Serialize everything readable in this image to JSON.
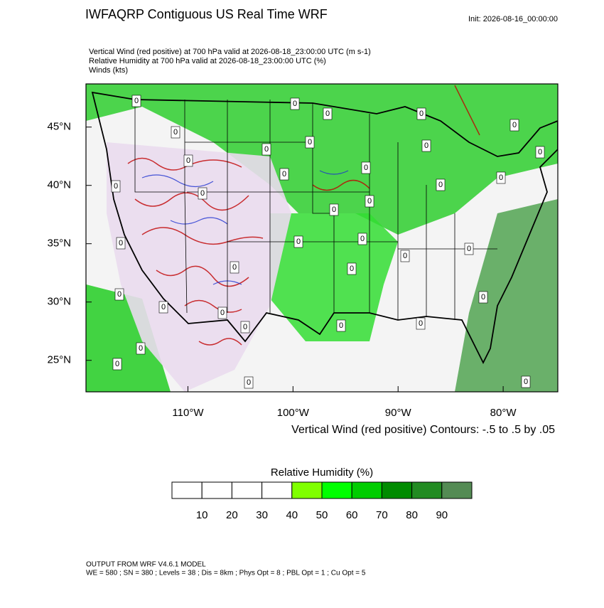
{
  "header": {
    "title": "IWFAQRP Contiguous US Real Time WRF",
    "init": "Init: 2026-08-16_00:00:00"
  },
  "fields": [
    "Vertical Wind (red positive) at 700 hPa valid at 2026-08-18_23:00:00 UTC   (m s-1)",
    "Relative Humidity at 700 hPa valid at 2026-08-18_23:00:00 UTC   (%)",
    "Winds   (kts)"
  ],
  "map": {
    "lonlim": [
      -119.7,
      -74.8
    ],
    "latlim": [
      22.3,
      48.7
    ],
    "lon_ticks": [
      {
        "value": -110,
        "label": "110°W"
      },
      {
        "value": -100,
        "label": "100°W"
      },
      {
        "value": -90,
        "label": "90°W"
      },
      {
        "value": -80,
        "label": "80°W"
      }
    ],
    "lat_ticks": [
      {
        "value": 45,
        "label": "45°N"
      },
      {
        "value": 40,
        "label": "40°N"
      },
      {
        "value": 35,
        "label": "35°N"
      },
      {
        "value": 30,
        "label": "30°N"
      },
      {
        "value": 25,
        "label": "25°N"
      }
    ],
    "contour_info": "Vertical Wind (red positive) Contours: -.5 to .5 by .05",
    "contour_label": "0"
  },
  "colorbar": {
    "title": "Relative Humidity  (%)",
    "levels": [
      10,
      20,
      30,
      40,
      50,
      60,
      70,
      80,
      90
    ],
    "colors": [
      "#ffffff",
      "#ffffff",
      "#ffffff",
      "#ffffff",
      "#7fff00",
      "#00ff00",
      "#00cd00",
      "#008b00",
      "#228b22",
      "#548b54"
    ]
  },
  "footer": [
    "OUTPUT FROM WRF V4.6.1 MODEL",
    "WE = 580 ; SN = 380 ; Levels = 38 ; Dis = 8km ; Phys Opt = 8 ; PBL Opt = 1 ; Cu Opt = 5"
  ]
}
